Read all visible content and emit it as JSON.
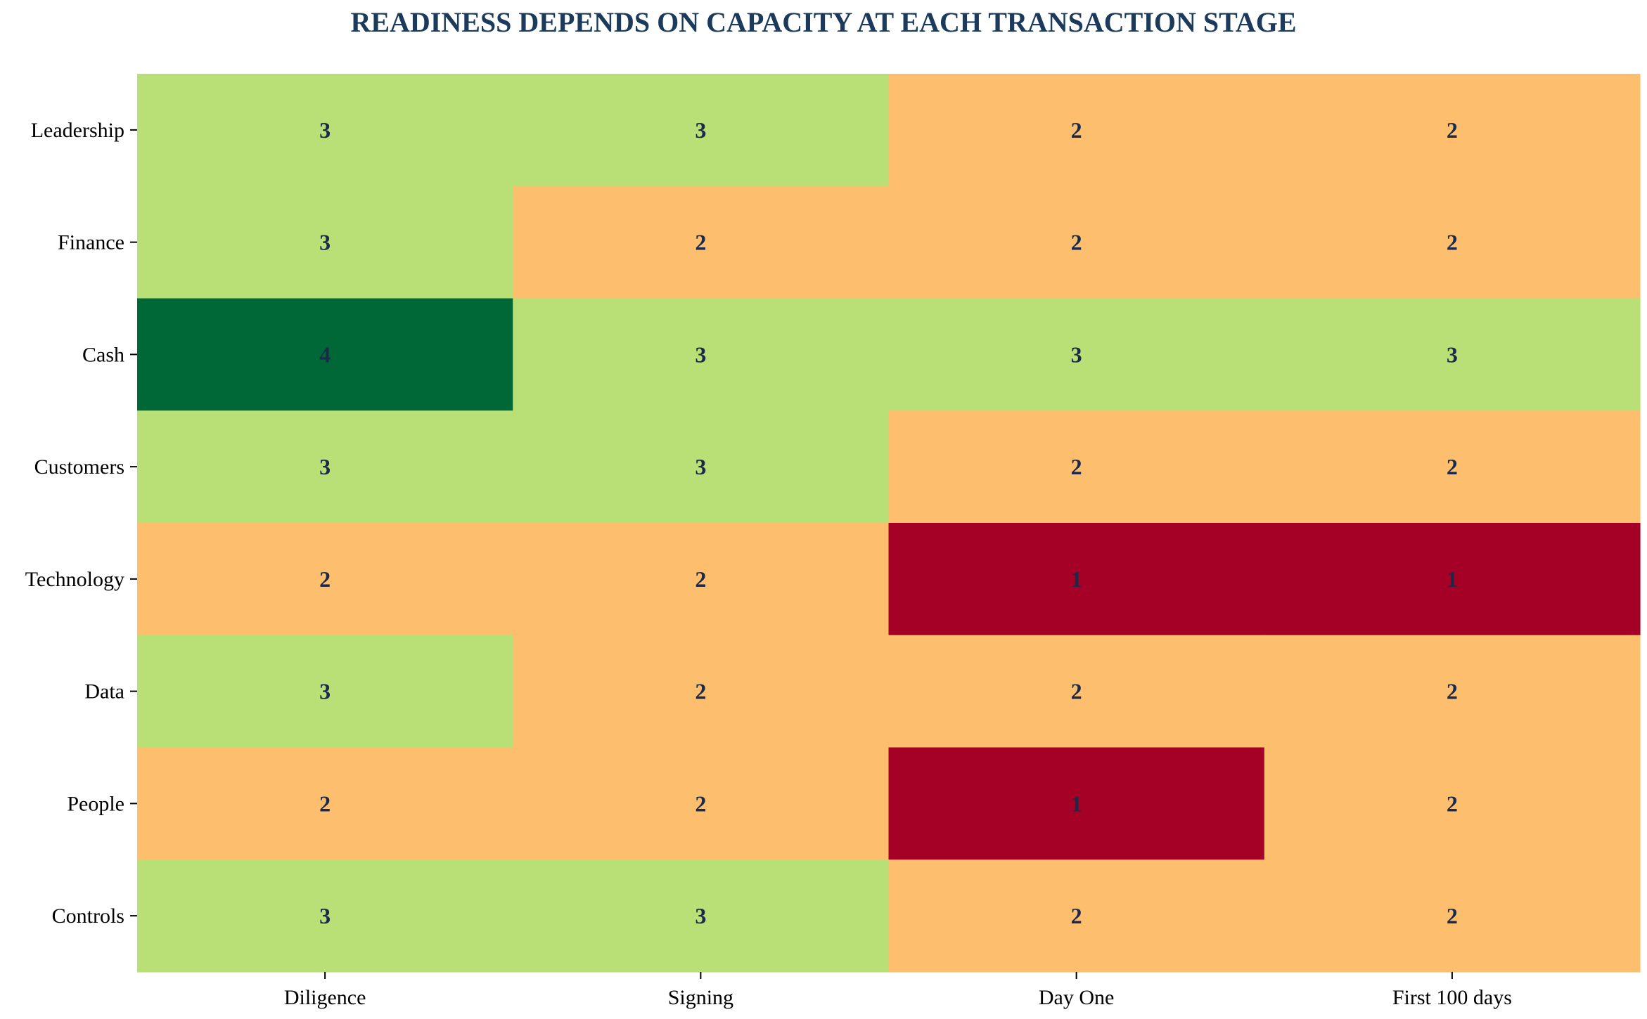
{
  "chart_data": {
    "type": "heatmap",
    "title": "READINESS DEPENDS ON CAPACITY AT EACH TRANSACTION STAGE",
    "xlabel": "",
    "ylabel": "",
    "columns": [
      "Diligence",
      "Signing",
      "Day One",
      "First 100 days"
    ],
    "rows": [
      "Leadership",
      "Finance",
      "Cash",
      "Customers",
      "Technology",
      "Data",
      "People",
      "Controls"
    ],
    "values": [
      [
        3,
        3,
        2,
        2
      ],
      [
        3,
        2,
        2,
        2
      ],
      [
        4,
        3,
        3,
        3
      ],
      [
        3,
        3,
        2,
        2
      ],
      [
        2,
        2,
        1,
        1
      ],
      [
        3,
        2,
        2,
        2
      ],
      [
        2,
        2,
        1,
        2
      ],
      [
        3,
        3,
        2,
        2
      ]
    ],
    "color_scale": {
      "1": "#a50026",
      "2": "#fdbe6e",
      "3": "#b8e076",
      "4": "#006837"
    },
    "colorbar": false,
    "grid": false
  }
}
